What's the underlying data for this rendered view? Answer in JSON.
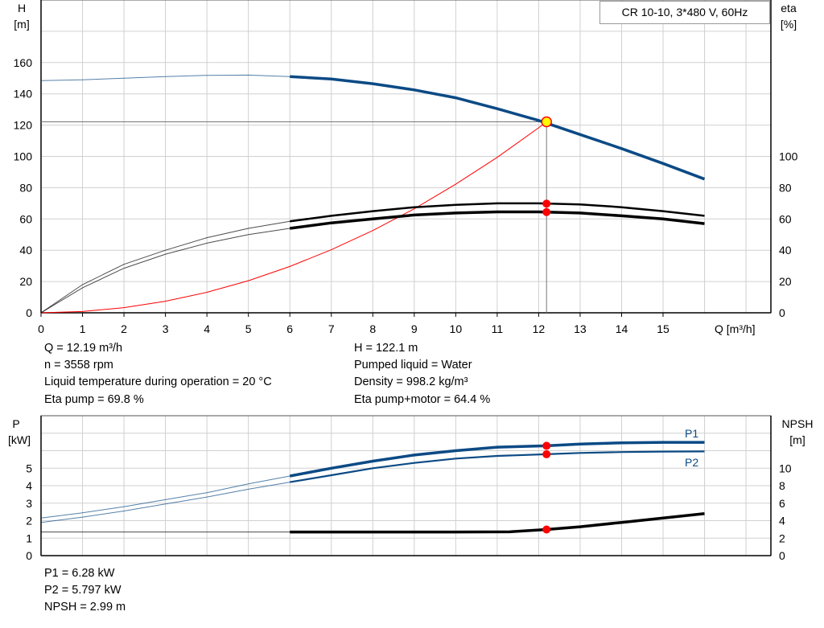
{
  "title_box": "CR 10-10, 3*480 V, 60Hz",
  "colors": {
    "head": "#0b4a85",
    "eta": "#000000",
    "system": "#ff0000",
    "power": "#0b4a85",
    "npsh": "#000000",
    "marker": "#ff0000",
    "op_marker": "#ffff00",
    "grid": "#d0d0d0"
  },
  "chart_data": [
    {
      "type": "line",
      "title": "",
      "xlabel": "Q [m³/h]",
      "ylabel_left": "H\n[m]",
      "ylabel_left_lines": [
        "H",
        "[m]"
      ],
      "ylabel_right_lines": [
        "eta",
        "[%]"
      ],
      "xlim": [
        0,
        17.6
      ],
      "ylim": [
        0,
        200
      ],
      "x_ticks": [
        0,
        1,
        2,
        3,
        4,
        5,
        6,
        7,
        8,
        9,
        10,
        11,
        12,
        13,
        14,
        15
      ],
      "y_ticks_left": [
        0,
        20,
        40,
        60,
        80,
        100,
        120,
        140,
        160
      ],
      "y_ticks_right": [
        0,
        20,
        40,
        60,
        80,
        100
      ],
      "grid": true,
      "operating_point": {
        "Q": 12.19,
        "H": 122.1,
        "eta_pump": 69.8,
        "eta_total": 64.4
      },
      "series": [
        {
          "id": "head",
          "x": [
            0,
            1,
            2,
            3,
            4,
            5,
            6,
            7,
            8,
            9,
            10,
            11,
            12,
            13,
            14,
            15,
            16
          ],
          "y": [
            148.5,
            149,
            150,
            151,
            151.8,
            152,
            151,
            149.5,
            146.5,
            142.5,
            137.5,
            130.5,
            123,
            114,
            105,
            95.5,
            85.5
          ]
        },
        {
          "id": "eta_pump",
          "x": [
            0,
            1,
            2,
            3,
            4,
            5,
            6,
            7,
            8,
            9,
            10,
            11,
            12,
            13,
            14,
            15,
            16
          ],
          "y": [
            0,
            18,
            31,
            40,
            48,
            54,
            58.5,
            62,
            65,
            67.5,
            69,
            70,
            70,
            69.3,
            67.5,
            65,
            62
          ]
        },
        {
          "id": "eta_total",
          "x": [
            0,
            1,
            2,
            3,
            4,
            5,
            6,
            7,
            8,
            9,
            10,
            11,
            12,
            13,
            14,
            15,
            16
          ],
          "y": [
            0,
            16,
            28.5,
            37.5,
            44.5,
            50,
            54,
            57.5,
            60,
            62.5,
            63.8,
            64.5,
            64.5,
            63.8,
            62,
            60,
            57
          ]
        },
        {
          "id": "system",
          "x": [
            0,
            1,
            2,
            3,
            4,
            5,
            6,
            7,
            8,
            9,
            10,
            11,
            12,
            12.19
          ],
          "y": [
            0,
            0.8,
            3.3,
            7.4,
            13.1,
            20.5,
            29.6,
            40.3,
            52.6,
            66.5,
            82.2,
            99.4,
            118.3,
            122.1
          ]
        }
      ]
    },
    {
      "type": "line",
      "title": "",
      "ylabel_left_lines": [
        "P",
        "[kW]"
      ],
      "ylabel_right_lines": [
        "NPSH",
        "[m]"
      ],
      "xlim": [
        0,
        17.6
      ],
      "ylim_left": [
        0,
        8
      ],
      "ylim_right": [
        0,
        16
      ],
      "y_ticks_left": [
        0,
        1,
        2,
        3,
        4,
        5
      ],
      "y_ticks_right": [
        0,
        2,
        4,
        6,
        8,
        10
      ],
      "grid": true,
      "series": [
        {
          "name": "P1",
          "x": [
            0,
            1,
            2,
            3,
            4,
            5,
            6,
            7,
            8,
            9,
            10,
            11,
            12.19,
            13,
            14,
            15,
            16
          ],
          "y": [
            2.15,
            2.45,
            2.8,
            3.2,
            3.6,
            4.1,
            4.55,
            5.0,
            5.4,
            5.75,
            6.0,
            6.2,
            6.28,
            6.38,
            6.45,
            6.48,
            6.48
          ]
        },
        {
          "name": "P2",
          "x": [
            0,
            1,
            2,
            3,
            4,
            5,
            6,
            7,
            8,
            9,
            10,
            11,
            12.19,
            13,
            14,
            15,
            16
          ],
          "y": [
            1.9,
            2.2,
            2.55,
            2.95,
            3.35,
            3.8,
            4.2,
            4.6,
            5.0,
            5.3,
            5.55,
            5.7,
            5.8,
            5.87,
            5.92,
            5.95,
            5.96
          ]
        },
        {
          "id": "npsh",
          "x": [
            0,
            6,
            8,
            10,
            11.3,
            12.19,
            13,
            14,
            15,
            16
          ],
          "y": [
            2.7,
            2.7,
            2.7,
            2.7,
            2.72,
            2.99,
            3.3,
            3.8,
            4.3,
            4.8
          ]
        }
      ]
    }
  ],
  "readouts_top": {
    "left": [
      "Q = 12.19 m³/h",
      "n = 3558 rpm",
      "Liquid temperature during operation = 20 °C",
      "Eta pump = 69.8 %"
    ],
    "right": [
      "H = 122.1 m",
      "Pumped liquid = Water",
      "Density = 998.2 kg/m³",
      "Eta pump+motor = 64.4 %"
    ]
  },
  "readouts_bottom": [
    "P1 = 6.28 kW",
    "P2 = 5.797 kW",
    "NPSH = 2.99 m"
  ]
}
